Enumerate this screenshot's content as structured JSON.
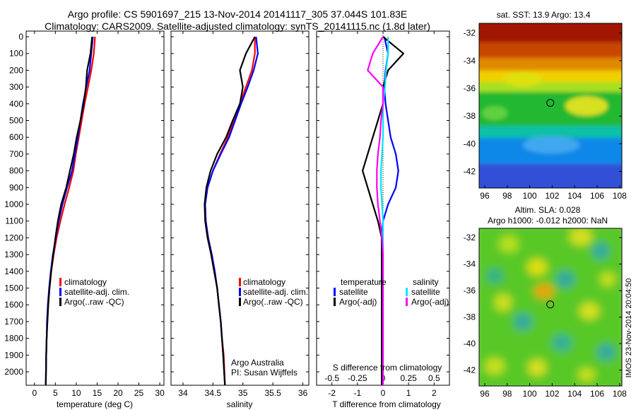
{
  "header": {
    "line1": "Argo profile: CS 5901697_215 13-Nov-2014 20141117_305 37.044S 101.83E",
    "line2": "Climatology: CARS2009. Satellite-adjusted climatology: synTS_20141115.nc (1.8d later)"
  },
  "colors": {
    "climatology": "#ff0000",
    "satellite": "#0000ff",
    "argo": "#000000",
    "satellite_s": "#00e5ff",
    "argo_s": "#ff00ff"
  },
  "chart_data": [
    {
      "type": "line",
      "xlabel": "temperature (deg C)",
      "ylabel": "",
      "xlim": [
        -2,
        31
      ],
      "ylim": [
        2080,
        0
      ],
      "xticks": [
        "0",
        "5",
        "10",
        "15",
        "20",
        "25",
        "30"
      ],
      "yticks": [
        "0",
        "100",
        "200",
        "300",
        "400",
        "500",
        "600",
        "700",
        "800",
        "900",
        "1000",
        "1100",
        "1200",
        "1300",
        "1400",
        "1500",
        "1600",
        "1700",
        "1800",
        "1900",
        "2000"
      ],
      "legend": [
        "climatology",
        "satellite-adj. clim.",
        "Argo(..raw -QC)"
      ],
      "series": [
        {
          "name": "climatology",
          "x": [
            14.5,
            14.2,
            13.6,
            12.8,
            12.0,
            11.3,
            10.6,
            9.9,
            9.3,
            8.3,
            7.2,
            6.2,
            5.3,
            4.6,
            4.0,
            3.6,
            3.3,
            3.1,
            2.9,
            2.8,
            2.7
          ],
          "y": [
            0,
            100,
            200,
            300,
            400,
            500,
            600,
            700,
            800,
            900,
            1000,
            1100,
            1200,
            1300,
            1400,
            1500,
            1600,
            1700,
            1800,
            1900,
            2080
          ]
        },
        {
          "name": "satellite-adj. clim.",
          "x": [
            14.0,
            13.6,
            13.2,
            12.4,
            11.6,
            11.0,
            10.4,
            9.7,
            9.0,
            7.8,
            6.7,
            5.8,
            5.1,
            4.4,
            3.9,
            3.5,
            3.2,
            3.0,
            2.9,
            2.8,
            2.7
          ],
          "y": [
            0,
            100,
            200,
            300,
            400,
            500,
            600,
            700,
            800,
            900,
            1000,
            1100,
            1200,
            1300,
            1400,
            1500,
            1600,
            1700,
            1800,
            1900,
            2080
          ]
        },
        {
          "name": "Argo(..raw -QC)",
          "x": [
            13.8,
            13.4,
            12.6,
            12.3,
            11.8,
            11.0,
            10.1,
            9.4,
            8.5,
            7.6,
            6.4,
            5.6,
            5.0,
            4.5,
            4.0,
            3.6,
            3.3,
            3.1,
            2.9,
            2.8,
            2.7
          ],
          "y": [
            0,
            100,
            200,
            300,
            400,
            500,
            600,
            700,
            800,
            900,
            1000,
            1100,
            1200,
            1300,
            1400,
            1500,
            1600,
            1700,
            1800,
            1900,
            2080
          ]
        }
      ]
    },
    {
      "type": "line",
      "xlabel": "salinity",
      "xlim": [
        33.8,
        36.1
      ],
      "ylim": [
        2080,
        0
      ],
      "xticks": [
        "34",
        "34.5",
        "35",
        "35.5",
        "36"
      ],
      "legend": [
        "climatology",
        "satellite-adj. clim.",
        "Argo(..raw -QC)"
      ],
      "annotation": [
        "Argo Australia",
        "PI: Susan Wijffels"
      ],
      "series": [
        {
          "name": "climatology",
          "x": [
            35.2,
            35.2,
            35.15,
            35.05,
            34.95,
            34.85,
            34.75,
            34.62,
            34.5,
            34.41,
            34.37,
            34.38,
            34.42,
            34.48,
            34.53,
            34.57,
            34.6,
            34.63,
            34.65,
            34.68,
            34.7
          ],
          "y": [
            0,
            100,
            200,
            300,
            400,
            500,
            600,
            700,
            800,
            900,
            1000,
            1100,
            1200,
            1300,
            1400,
            1500,
            1600,
            1700,
            1800,
            1900,
            2080
          ]
        },
        {
          "name": "satellite-adj. clim.",
          "x": [
            35.22,
            35.25,
            35.18,
            35.08,
            34.97,
            34.87,
            34.77,
            34.63,
            34.5,
            34.41,
            34.37,
            34.38,
            34.42,
            34.48,
            34.53,
            34.57,
            34.6,
            34.63,
            34.65,
            34.67,
            34.7
          ],
          "y": [
            0,
            100,
            200,
            300,
            400,
            500,
            600,
            700,
            800,
            900,
            1000,
            1100,
            1200,
            1300,
            1400,
            1500,
            1600,
            1700,
            1800,
            1900,
            2080
          ]
        },
        {
          "name": "Argo(..raw -QC)",
          "x": [
            35.2,
            35.05,
            34.95,
            35.0,
            34.95,
            34.83,
            34.72,
            34.57,
            34.46,
            34.39,
            34.36,
            34.37,
            34.41,
            34.47,
            34.52,
            34.57,
            34.6,
            34.63,
            34.65,
            34.67,
            34.7
          ],
          "y": [
            0,
            100,
            200,
            300,
            400,
            500,
            600,
            700,
            800,
            900,
            1000,
            1100,
            1200,
            1300,
            1400,
            1500,
            1600,
            1700,
            1800,
            1900,
            2080
          ]
        }
      ]
    },
    {
      "type": "line",
      "xlabel": "T difference from climatology",
      "xlabel_top": "S difference from climatology",
      "xlim": [
        -2.6,
        2.6
      ],
      "ylim": [
        2080,
        0
      ],
      "xticks": [
        "-2",
        "-1",
        "0",
        "1",
        "2"
      ],
      "xticks_top": [
        "-0.5",
        "-0.25",
        "0",
        "0.25",
        "0.5"
      ],
      "legend_titles": [
        "temperature",
        "salinity"
      ],
      "legend": [
        "satellite",
        "Argo(-adj)",
        "satellite",
        "Argo(-adj)"
      ],
      "series": [
        {
          "name": "satellite",
          "x": [
            0.05,
            0.2,
            0.1,
            0.05,
            0.1,
            0.2,
            0.3,
            0.5,
            0.6,
            0.5,
            0.2,
            0.0,
            -0.05,
            -0.05,
            -0.05,
            -0.05,
            -0.05,
            -0.05,
            -0.05,
            -0.05,
            -0.05
          ],
          "y": [
            0,
            100,
            200,
            300,
            400,
            500,
            600,
            700,
            800,
            900,
            1000,
            1100,
            1200,
            1300,
            1400,
            1500,
            1600,
            1700,
            1800,
            1900,
            2080
          ]
        },
        {
          "name": "Argo(-adj)",
          "x": [
            0.0,
            0.8,
            0.2,
            0.0,
            0.0,
            -0.2,
            -0.4,
            -0.6,
            -0.8,
            -0.6,
            -0.4,
            -0.2,
            -0.05,
            -0.05,
            -0.05,
            -0.05,
            -0.05,
            -0.05,
            -0.05,
            -0.05,
            -0.05
          ],
          "y": [
            0,
            100,
            200,
            300,
            400,
            500,
            600,
            700,
            800,
            900,
            1000,
            1100,
            1200,
            1300,
            1400,
            1500,
            1600,
            1700,
            1800,
            1900,
            2080
          ]
        },
        {
          "name": "satellite",
          "x": [
            0.05,
            0.05,
            0.03,
            0.02,
            0.0,
            0.0,
            0.0,
            -0.01,
            -0.02,
            -0.02,
            -0.01,
            0.0,
            0.0,
            0.0,
            0.0,
            0.0,
            0.0,
            0.0,
            0.0,
            0.0,
            0.0
          ],
          "y": [
            0,
            100,
            200,
            300,
            400,
            500,
            600,
            700,
            800,
            900,
            1000,
            1100,
            1200,
            1300,
            1400,
            1500,
            1600,
            1700,
            1800,
            1900,
            2080
          ]
        },
        {
          "name": "Argo(-adj)",
          "x": [
            0.0,
            -0.1,
            -0.15,
            0.0,
            0.0,
            -0.02,
            -0.03,
            -0.05,
            -0.06,
            -0.06,
            -0.05,
            -0.03,
            -0.01,
            0.0,
            0.0,
            0.0,
            0.0,
            0.0,
            0.0,
            0.0,
            0.0
          ],
          "y": [
            0,
            100,
            200,
            300,
            400,
            500,
            600,
            700,
            800,
            900,
            1000,
            1100,
            1200,
            1300,
            1400,
            1500,
            1600,
            1700,
            1800,
            1900,
            2080
          ]
        }
      ]
    },
    {
      "type": "heatmap",
      "title": "sat. SST: 13.9 Argo: 13.4",
      "xlim": [
        95.5,
        108.2
      ],
      "ylim": [
        -43.2,
        -31.3
      ],
      "xticks": [
        "96",
        "98",
        "100",
        "102",
        "104",
        "106",
        "108"
      ],
      "yticks": [
        "-32",
        "-34",
        "-36",
        "-38",
        "-40",
        "-42"
      ],
      "marker": {
        "x": 101.83,
        "y": -37.044
      }
    },
    {
      "type": "heatmap",
      "title_line1": "Altim. SLA: 0.028",
      "title_line2": "Argo h1000: -0.012 h2000: NaN",
      "xlim": [
        95.5,
        108.2
      ],
      "ylim": [
        -43.2,
        -31.3
      ],
      "xticks": [
        "96",
        "98",
        "100",
        "102",
        "104",
        "106",
        "108"
      ],
      "yticks": [
        "-32",
        "-34",
        "-36",
        "-38",
        "-40",
        "-42"
      ],
      "marker": {
        "x": 101.83,
        "y": -37.044
      },
      "side_label": "IMOS 23-Nov-2014 20:04:50"
    }
  ]
}
